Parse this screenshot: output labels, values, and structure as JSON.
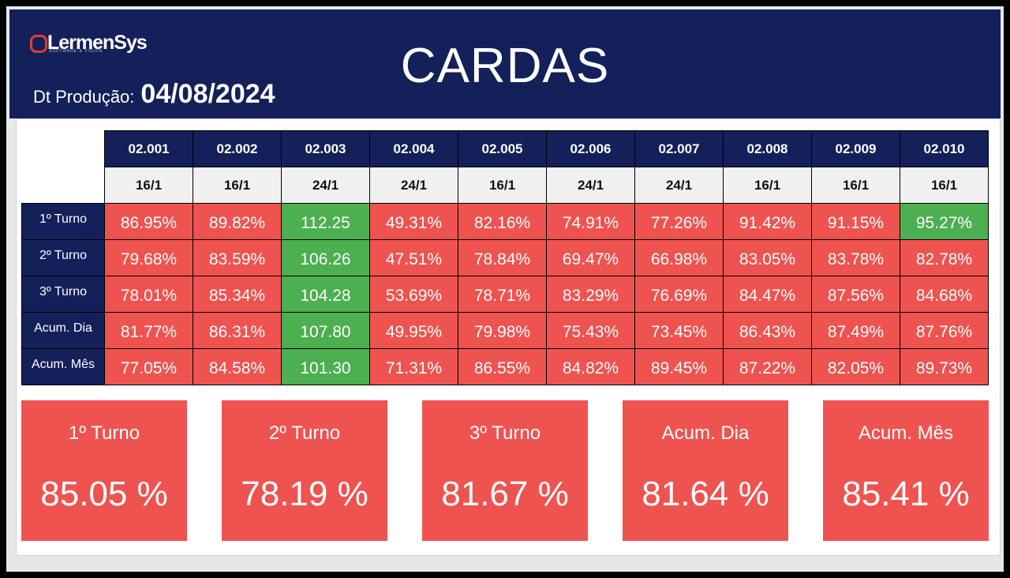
{
  "header": {
    "logo_text": "LermenSys",
    "logo_tagline": "SOFTWARE & VISION",
    "date_label": "Dt Produção:",
    "date_value": "04/08/2024",
    "title": "CARDAS"
  },
  "colors": {
    "header_bg": "#14205a",
    "below_target": "#ef5350",
    "above_target": "#4caf50",
    "ratio_bg": "#f0f0f0"
  },
  "machines": [
    {
      "id": "02.001",
      "ratio": "16/1"
    },
    {
      "id": "02.002",
      "ratio": "16/1"
    },
    {
      "id": "02.003",
      "ratio": "24/1"
    },
    {
      "id": "02.004",
      "ratio": "24/1"
    },
    {
      "id": "02.005",
      "ratio": "16/1"
    },
    {
      "id": "02.006",
      "ratio": "24/1"
    },
    {
      "id": "02.007",
      "ratio": "24/1"
    },
    {
      "id": "02.008",
      "ratio": "16/1"
    },
    {
      "id": "02.009",
      "ratio": "16/1"
    },
    {
      "id": "02.010",
      "ratio": "16/1"
    }
  ],
  "rows": [
    {
      "label": "1º Turno",
      "values": [
        {
          "v": "86.95%",
          "s": "red"
        },
        {
          "v": "89.82%",
          "s": "red"
        },
        {
          "v": "112.25",
          "s": "green"
        },
        {
          "v": "49.31%",
          "s": "red"
        },
        {
          "v": "82.16%",
          "s": "red"
        },
        {
          "v": "74.91%",
          "s": "red"
        },
        {
          "v": "77.26%",
          "s": "red"
        },
        {
          "v": "91.42%",
          "s": "red"
        },
        {
          "v": "91.15%",
          "s": "red"
        },
        {
          "v": "95.27%",
          "s": "green"
        }
      ]
    },
    {
      "label": "2º Turno",
      "values": [
        {
          "v": "79.68%",
          "s": "red"
        },
        {
          "v": "83.59%",
          "s": "red"
        },
        {
          "v": "106.26",
          "s": "green"
        },
        {
          "v": "47.51%",
          "s": "red"
        },
        {
          "v": "78.84%",
          "s": "red"
        },
        {
          "v": "69.47%",
          "s": "red"
        },
        {
          "v": "66.98%",
          "s": "red"
        },
        {
          "v": "83.05%",
          "s": "red"
        },
        {
          "v": "83.78%",
          "s": "red"
        },
        {
          "v": "82.78%",
          "s": "red"
        }
      ]
    },
    {
      "label": "3º Turno",
      "values": [
        {
          "v": "78.01%",
          "s": "red"
        },
        {
          "v": "85.34%",
          "s": "red"
        },
        {
          "v": "104.28",
          "s": "green"
        },
        {
          "v": "53.69%",
          "s": "red"
        },
        {
          "v": "78.71%",
          "s": "red"
        },
        {
          "v": "83.29%",
          "s": "red"
        },
        {
          "v": "76.69%",
          "s": "red"
        },
        {
          "v": "84.47%",
          "s": "red"
        },
        {
          "v": "87.56%",
          "s": "red"
        },
        {
          "v": "84.68%",
          "s": "red"
        }
      ]
    },
    {
      "label": "Acum. Dia",
      "values": [
        {
          "v": "81.77%",
          "s": "red"
        },
        {
          "v": "86.31%",
          "s": "red"
        },
        {
          "v": "107.80",
          "s": "green"
        },
        {
          "v": "49.95%",
          "s": "red"
        },
        {
          "v": "79.98%",
          "s": "red"
        },
        {
          "v": "75.43%",
          "s": "red"
        },
        {
          "v": "73.45%",
          "s": "red"
        },
        {
          "v": "86.43%",
          "s": "red"
        },
        {
          "v": "87.49%",
          "s": "red"
        },
        {
          "v": "87.76%",
          "s": "red"
        }
      ]
    },
    {
      "label": "Acum. Mês",
      "values": [
        {
          "v": "77.05%",
          "s": "red"
        },
        {
          "v": "84.58%",
          "s": "red"
        },
        {
          "v": "101.30",
          "s": "green"
        },
        {
          "v": "71.31%",
          "s": "red"
        },
        {
          "v": "86.55%",
          "s": "red"
        },
        {
          "v": "84.82%",
          "s": "red"
        },
        {
          "v": "89.45%",
          "s": "red"
        },
        {
          "v": "87.22%",
          "s": "red"
        },
        {
          "v": "82.05%",
          "s": "red"
        },
        {
          "v": "89.73%",
          "s": "red"
        }
      ]
    }
  ],
  "summary": [
    {
      "label": "1º Turno",
      "value": "85.05 %"
    },
    {
      "label": "2º Turno",
      "value": "78.19 %"
    },
    {
      "label": "3º Turno",
      "value": "81.67 %"
    },
    {
      "label": "Acum. Dia",
      "value": "81.64 %"
    },
    {
      "label": "Acum. Mês",
      "value": "85.41 %"
    }
  ]
}
